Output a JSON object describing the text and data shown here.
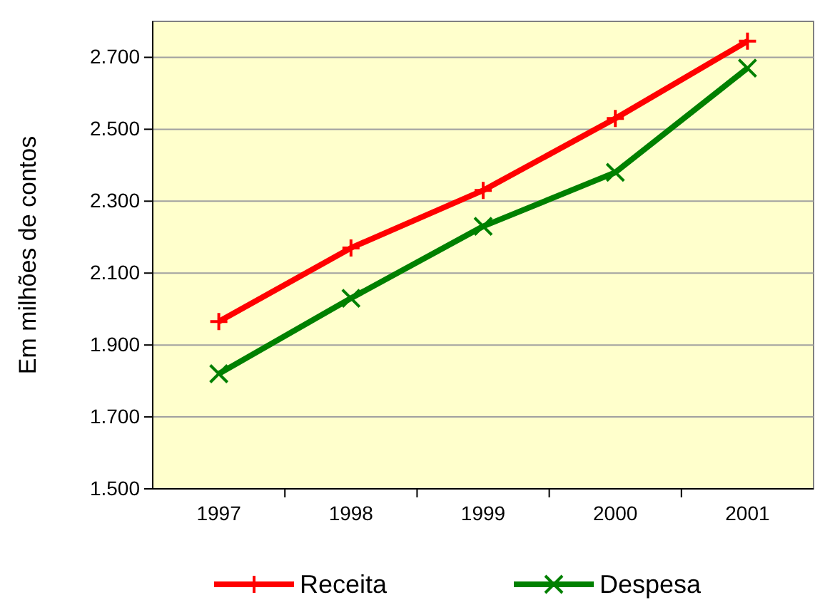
{
  "chart_data": {
    "type": "line",
    "ylabel": "Em milhões de contos",
    "categories": [
      "1997",
      "1998",
      "1999",
      "2000",
      "2001"
    ],
    "series": [
      {
        "name": "Receita",
        "color": "#ff0000",
        "marker": "plus",
        "values": [
          1965,
          2170,
          2330,
          2530,
          2745
        ]
      },
      {
        "name": "Despesa",
        "color": "#008000",
        "marker": "cross",
        "values": [
          1820,
          2030,
          2230,
          2380,
          2670
        ]
      }
    ],
    "ylim": [
      1500,
      2800
    ],
    "yticks": [
      {
        "value": 1500,
        "label": "1.500"
      },
      {
        "value": 1700,
        "label": "1.700"
      },
      {
        "value": 1900,
        "label": "1.900"
      },
      {
        "value": 2100,
        "label": "2.100"
      },
      {
        "value": 2300,
        "label": "2.300"
      },
      {
        "value": 2500,
        "label": "2.500"
      },
      {
        "value": 2700,
        "label": "2.700"
      }
    ],
    "grid": "y",
    "legend": "bottom"
  }
}
